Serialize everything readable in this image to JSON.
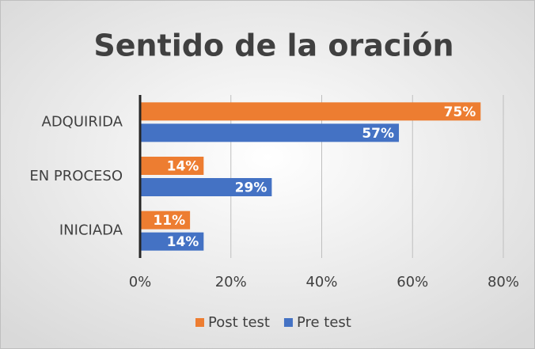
{
  "chart_data": {
    "type": "hbar",
    "title": "Sentido de la oración",
    "categories": [
      "ADQUIRIDA",
      "EN PROCESO",
      "INICIADA"
    ],
    "series": [
      {
        "name": "Post test",
        "color": "#ED7D31",
        "values": [
          75,
          14,
          11
        ],
        "value_labels": [
          "75%",
          "14%",
          "11%"
        ]
      },
      {
        "name": "Pre test",
        "color": "#4472C4",
        "values": [
          57,
          29,
          14
        ],
        "value_labels": [
          "57%",
          "29%",
          "14%"
        ]
      }
    ],
    "xlim": [
      0,
      80
    ],
    "xticks": [
      {
        "value": 0,
        "label": "0%"
      },
      {
        "value": 20,
        "label": "20%"
      },
      {
        "value": 40,
        "label": "40%"
      },
      {
        "value": 60,
        "label": "60%"
      },
      {
        "value": 80,
        "label": "80%"
      }
    ],
    "grid": true,
    "legend": "bottom"
  }
}
